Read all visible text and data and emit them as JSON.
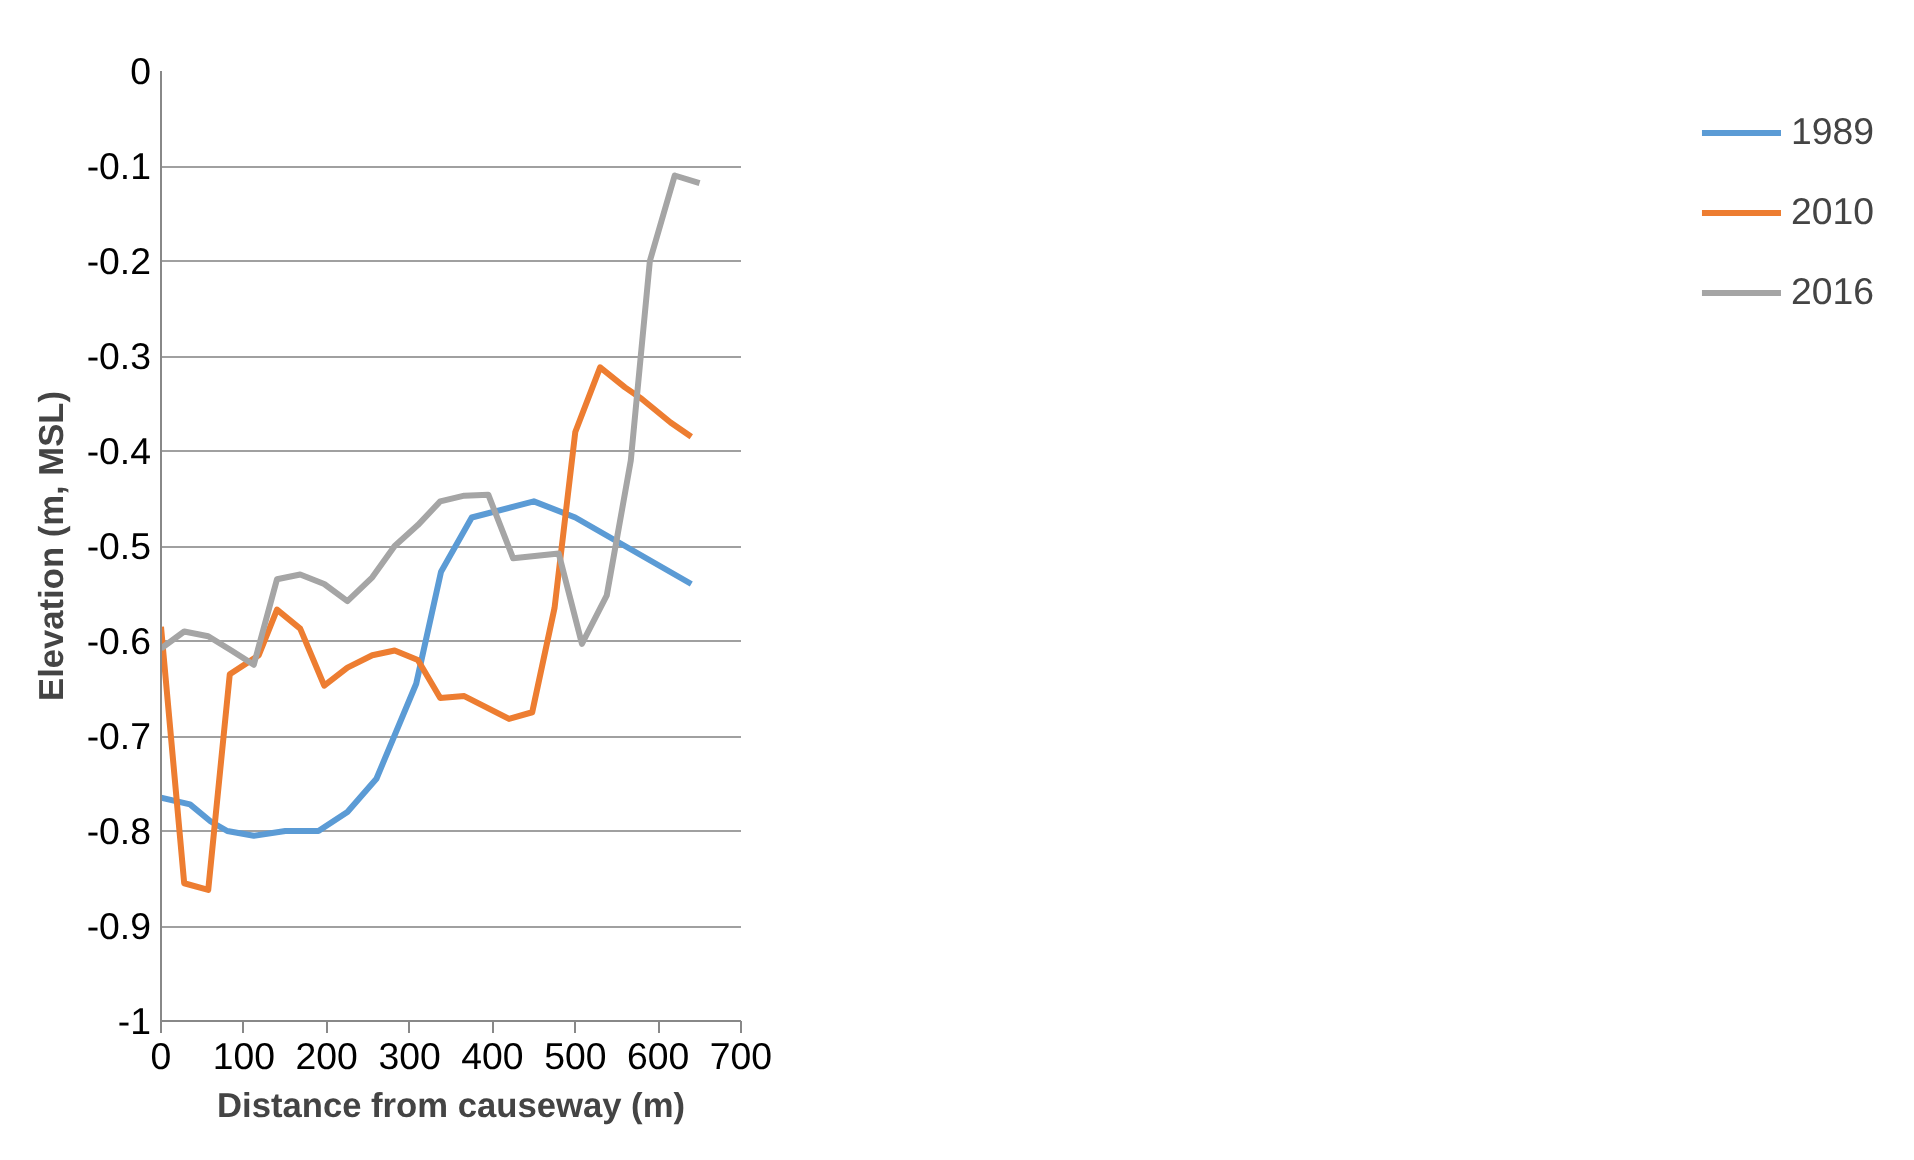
{
  "chart_data": {
    "type": "line",
    "xlabel": "Distance from causeway (m)",
    "ylabel": "Elevation (m, MSL)",
    "xlim": [
      0,
      700
    ],
    "xticks": [
      0,
      100,
      200,
      300,
      400,
      500,
      600,
      700
    ],
    "ylim": [
      -1,
      0
    ],
    "yticks": [
      {
        "value": -1,
        "label": "-1"
      },
      -0.9,
      -0.8,
      -0.7,
      -0.6,
      -0.5,
      -0.4,
      -0.3,
      -0.2,
      -0.1,
      {
        "value": 0,
        "label": "0"
      }
    ],
    "grid": "y",
    "legend": "right",
    "marker": "none",
    "line_style": "solid",
    "series": [
      {
        "name": "1989",
        "color": "#5b9bd5",
        "x": [
          0,
          35,
          60,
          80,
          112,
          150,
          190,
          225,
          260,
          308,
          338,
          375,
          450,
          500,
          640
        ],
        "values": [
          -0.765,
          -0.772,
          -0.79,
          -0.8,
          -0.805,
          -0.8,
          -0.8,
          -0.78,
          -0.745,
          -0.645,
          -0.527,
          -0.47,
          -0.453,
          -0.47,
          -0.54
        ]
      },
      {
        "name": "2010",
        "color": "#ed7d31",
        "x": [
          0,
          28,
          57,
          83,
          118,
          140,
          168,
          197,
          225,
          255,
          282,
          310,
          337,
          366,
          420,
          448,
          475,
          500,
          530,
          560,
          580,
          615,
          640
        ],
        "values": [
          -0.585,
          -0.855,
          -0.862,
          -0.635,
          -0.615,
          -0.567,
          -0.587,
          -0.647,
          -0.628,
          -0.615,
          -0.61,
          -0.62,
          -0.66,
          -0.658,
          -0.682,
          -0.675,
          -0.565,
          -0.38,
          -0.312,
          -0.333,
          -0.345,
          -0.37,
          -0.385
        ]
      },
      {
        "name": "2016",
        "color": "#a5a5a5",
        "x": [
          0,
          28,
          57,
          85,
          112,
          140,
          168,
          197,
          225,
          255,
          282,
          310,
          337,
          366,
          395,
          425,
          480,
          508,
          538,
          567,
          590,
          620,
          650
        ],
        "values": [
          -0.608,
          -0.59,
          -0.595,
          -0.61,
          -0.625,
          -0.535,
          -0.53,
          -0.54,
          -0.558,
          -0.533,
          -0.5,
          -0.478,
          -0.453,
          -0.447,
          -0.446,
          -0.513,
          -0.508,
          -0.603,
          -0.552,
          -0.41,
          -0.2,
          -0.11,
          -0.118
        ]
      }
    ]
  }
}
